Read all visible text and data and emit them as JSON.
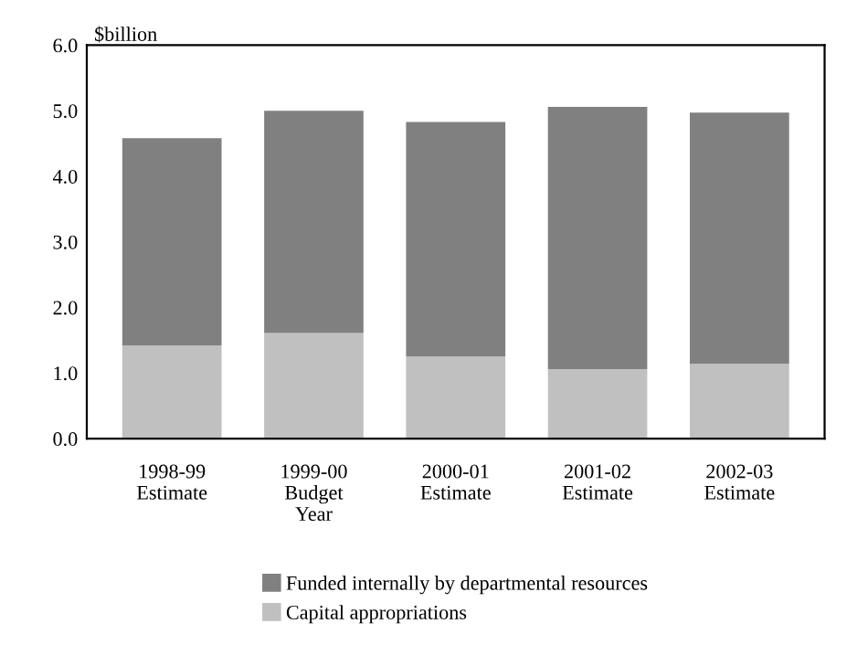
{
  "chart_data": {
    "type": "bar",
    "stacked": true,
    "ylabel": "$billion",
    "categories": [
      "1998-99\nEstimate",
      "1999-00\nBudget\nYear",
      "2000-01\nEstimate",
      "2001-02\nEstimate",
      "2002-03\nEstimate"
    ],
    "series": [
      {
        "name": "Capital appropriations",
        "color": "#c0c0c0",
        "values": [
          1.42,
          1.61,
          1.25,
          1.06,
          1.14
        ]
      },
      {
        "name": "Funded internally by departmental resources",
        "color": "#808080",
        "values": [
          3.16,
          3.39,
          3.58,
          4.0,
          3.83
        ]
      }
    ],
    "ylim": [
      0,
      6
    ],
    "yticks": [
      {
        "value": 0,
        "label": "0.0"
      },
      {
        "value": 1,
        "label": "1.0"
      },
      {
        "value": 2,
        "label": "2.0"
      },
      {
        "value": 3,
        "label": "3.0"
      },
      {
        "value": 4,
        "label": "4.0"
      },
      {
        "value": 5,
        "label": "5.0"
      },
      {
        "value": 6,
        "label": "6.0"
      }
    ],
    "grid": false,
    "legend": "bottom"
  }
}
